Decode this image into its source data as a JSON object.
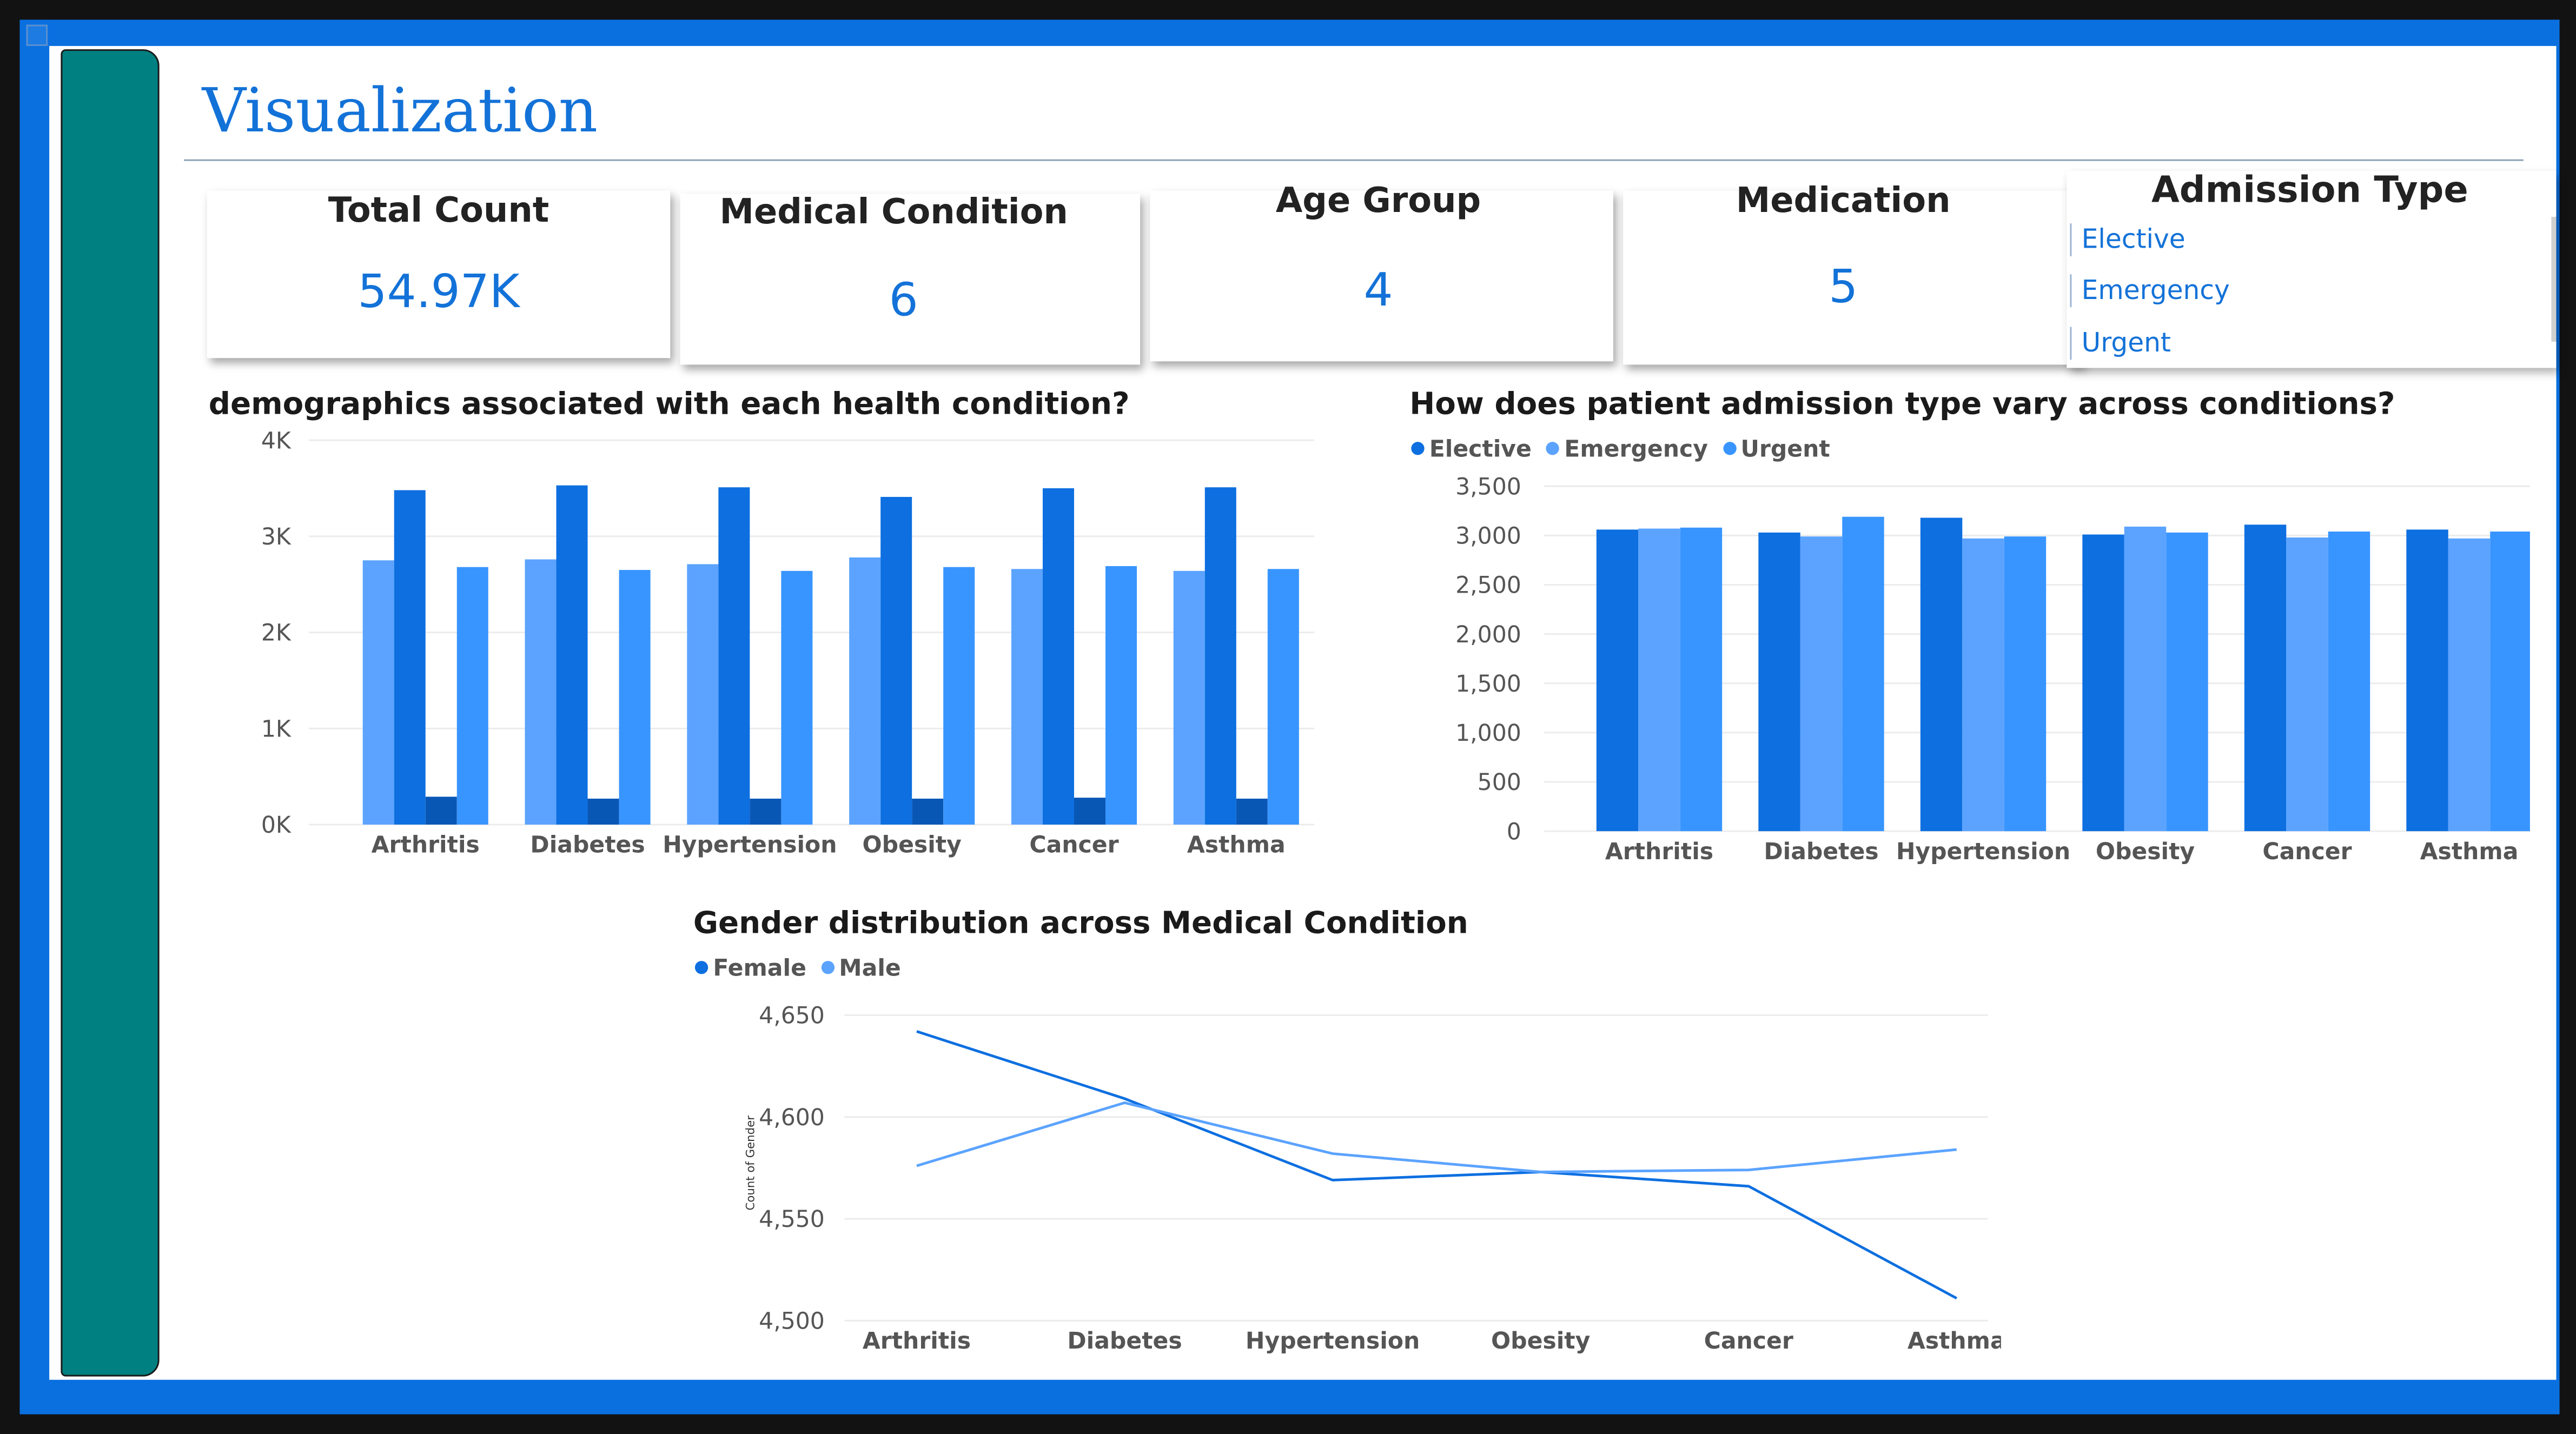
{
  "page": {
    "title": "Visualization",
    "colors": {
      "frame": "#0a70e0",
      "sidebar": "#008080",
      "accent": "#1372d8",
      "dark_blue": "#0d6fe0",
      "light_blue": "#5ba3ff",
      "mid_blue": "#3895ff",
      "navy": "#0957b5"
    }
  },
  "cards": [
    {
      "title": "Total Count",
      "value": "54.97K"
    },
    {
      "title": "Medical Condition",
      "value": "6"
    },
    {
      "title": "Age Group",
      "value": "4"
    },
    {
      "title": "Medication",
      "value": "5"
    }
  ],
  "slicer": {
    "title": "Admission Type",
    "items": [
      "Elective",
      "Emergency",
      "Urgent"
    ]
  },
  "chart_data": [
    {
      "type": "bar",
      "title": "demographics associated with each health condition?",
      "categories": [
        "Arthritis",
        "Diabetes",
        "Hypertension",
        "Obesity",
        "Cancer",
        "Asthma"
      ],
      "series": [
        {
          "values": [
            2750,
            2760,
            2710,
            2780,
            2660,
            2640
          ]
        },
        {
          "values": [
            3480,
            3530,
            3510,
            3410,
            3500,
            3510
          ]
        },
        {
          "values": [
            290,
            270,
            270,
            270,
            280,
            270
          ]
        },
        {
          "values": [
            2680,
            2650,
            2640,
            2680,
            2690,
            2660
          ]
        }
      ],
      "yticks": [
        "0K",
        "1K",
        "2K",
        "3K",
        "4K"
      ],
      "ylim": [
        0,
        4000
      ],
      "grid": true
    },
    {
      "type": "bar",
      "title": "How does patient admission type vary across conditions?",
      "categories": [
        "Arthritis",
        "Diabetes",
        "Hypertension",
        "Obesity",
        "Cancer",
        "Asthma"
      ],
      "series": [
        {
          "name": "Elective",
          "values": [
            3060,
            3030,
            3180,
            3010,
            3110,
            3060
          ]
        },
        {
          "name": "Emergency",
          "values": [
            3070,
            2990,
            2970,
            3090,
            2980,
            2970
          ]
        },
        {
          "name": "Urgent",
          "values": [
            3080,
            3190,
            2990,
            3030,
            3040,
            3040
          ]
        }
      ],
      "yticks": [
        "0",
        "500",
        "1,000",
        "1,500",
        "2,000",
        "2,500",
        "3,000",
        "3,500"
      ],
      "ylim": [
        0,
        3500
      ],
      "legend_position": "top-left",
      "grid": true
    },
    {
      "type": "line",
      "title": "Gender distribution across Medical Condition",
      "categories": [
        "Arthritis",
        "Diabetes",
        "Hypertension",
        "Obesity",
        "Cancer",
        "Asthma"
      ],
      "series": [
        {
          "name": "Female",
          "values": [
            4642,
            4609,
            4569,
            4573,
            4566,
            4511
          ]
        },
        {
          "name": "Male",
          "values": [
            4576,
            4607,
            4582,
            4573,
            4574,
            4584
          ]
        }
      ],
      "ylabel": "Count of Gender",
      "yticks": [
        "4,500",
        "4,550",
        "4,600",
        "4,650"
      ],
      "ylim": [
        4500,
        4650
      ],
      "legend_position": "top-left",
      "grid": true
    }
  ]
}
